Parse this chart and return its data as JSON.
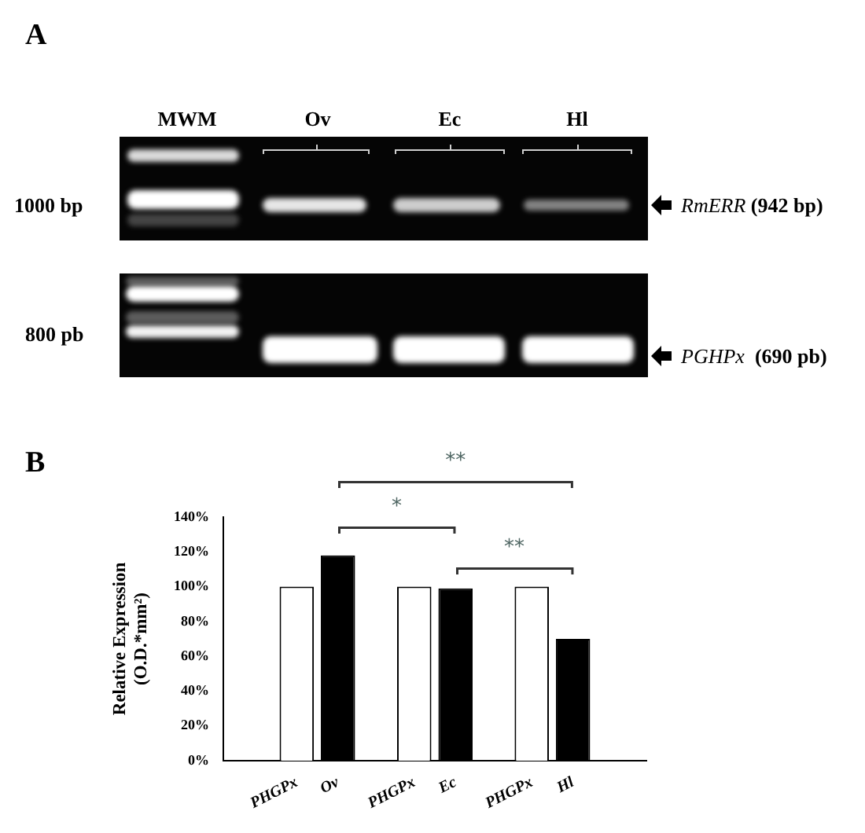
{
  "chart_data": {
    "type": "bar",
    "categories": [
      "PHGPx",
      "Ov",
      "PHGPx",
      "Ec",
      "PHGPx",
      "Hl"
    ],
    "values": [
      100,
      118,
      100,
      99,
      100,
      70
    ],
    "colors": [
      "#ffffff",
      "#000000",
      "#ffffff",
      "#000000",
      "#ffffff",
      "#000000"
    ],
    "ylabel": "Relative Expression\n(O.D.*mm²)",
    "ylim": [
      0,
      140
    ],
    "yticks": [
      {
        "value": 0,
        "label": "0%"
      },
      {
        "value": 20,
        "label": "20%"
      },
      {
        "value": 40,
        "label": "40%"
      },
      {
        "value": 60,
        "label": "60%"
      },
      {
        "value": 80,
        "label": "80%"
      },
      {
        "value": 100,
        "label": "100%"
      },
      {
        "value": 120,
        "label": "120%"
      },
      {
        "value": 140,
        "label": "140%"
      }
    ],
    "annotations": [
      "A",
      "MWM",
      "Ov",
      "Ec",
      "Hl",
      "1000 bp",
      "800 pb",
      "RmERR (942 bp)",
      "PGHPx  (690 pb)",
      "B",
      "**",
      "*",
      "**"
    ]
  }
}
